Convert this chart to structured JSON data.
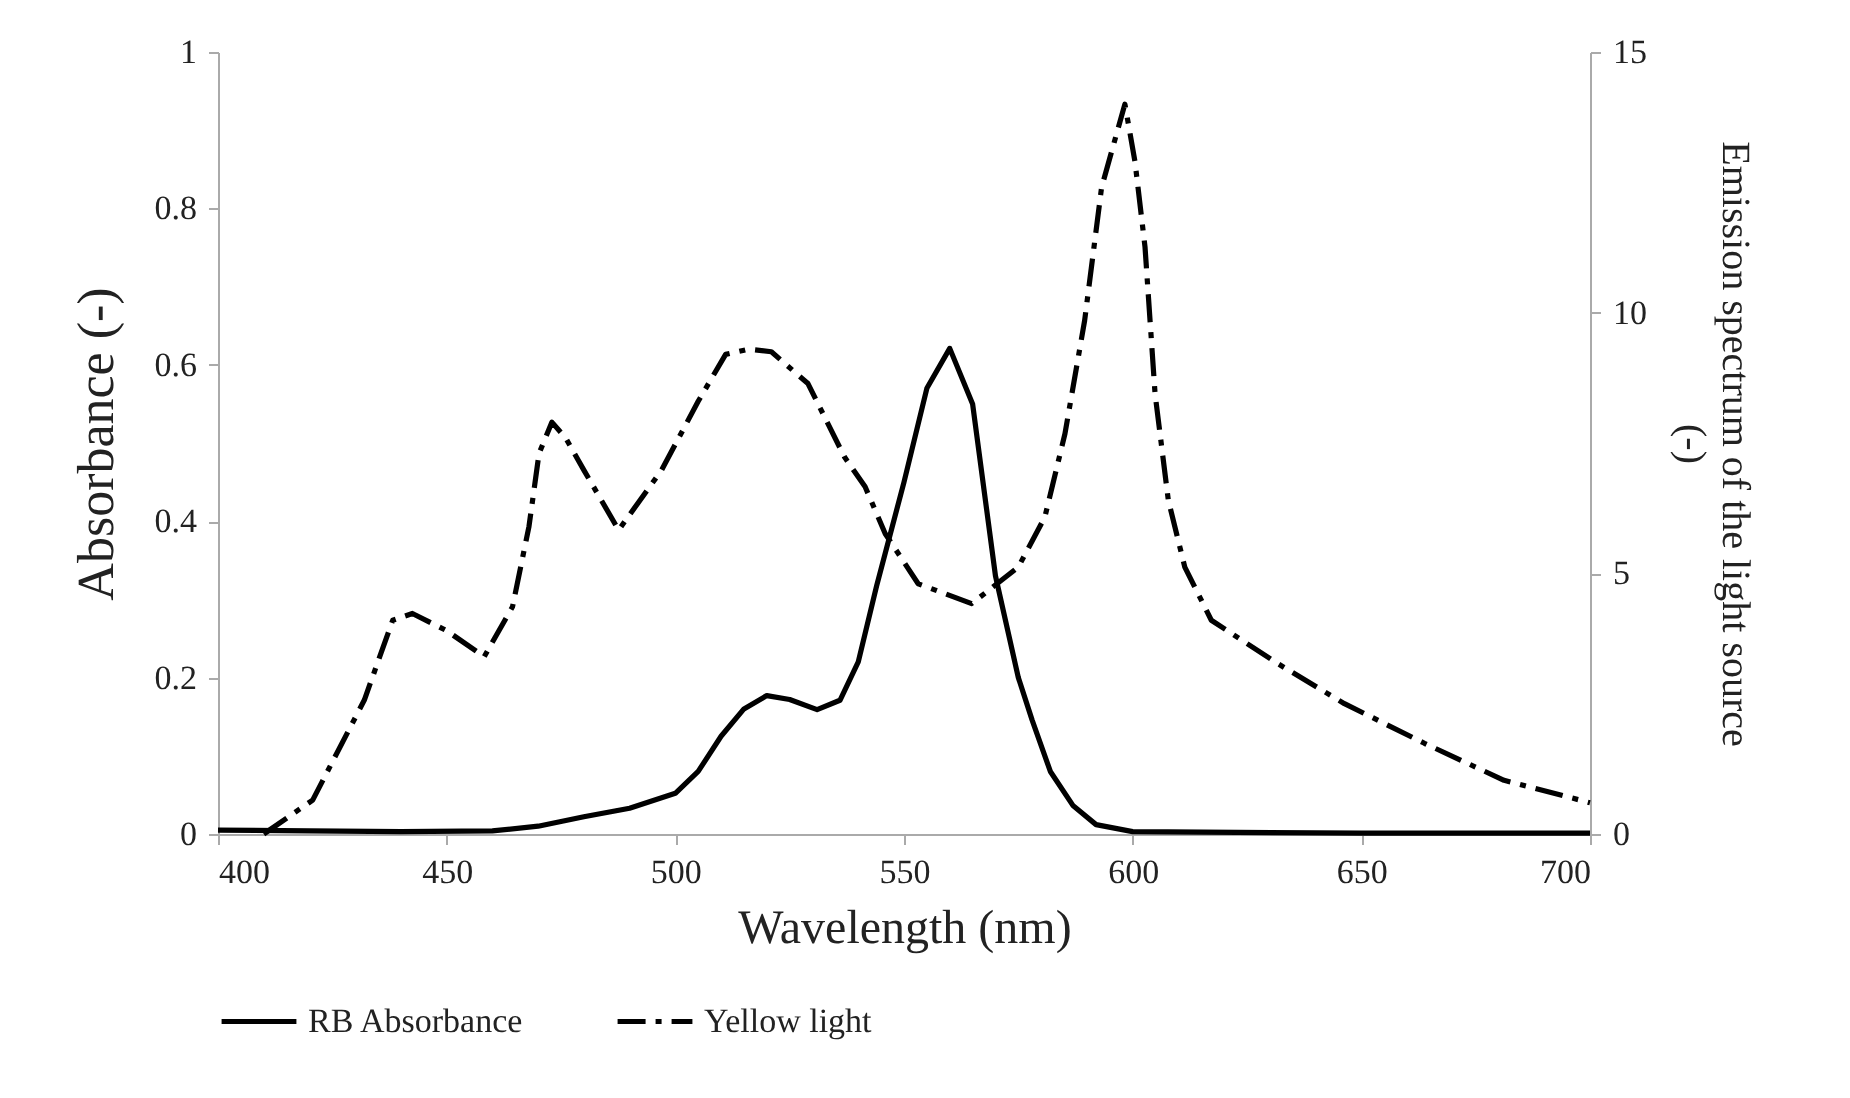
{
  "chart_data": {
    "type": "line",
    "xlabel": "Wavelength (nm)",
    "ylabel": "Absorbance  (-)",
    "y2label": "Emission spectrum of the light source\n(-)",
    "xlim": [
      400,
      700
    ],
    "xticks": [
      400,
      450,
      500,
      550,
      600,
      650,
      700
    ],
    "ylim": [
      0,
      1
    ],
    "yticks": [
      0,
      0.2,
      0.4,
      0.6,
      0.8,
      1
    ],
    "y2lim": [
      0,
      15
    ],
    "y2ticks": [
      0,
      5,
      10,
      15
    ],
    "grid": false,
    "legend": "bottom",
    "marker": "none",
    "series": [
      {
        "name": "RB Absorbance",
        "color": "#000000",
        "line_style": "solid",
        "x": [
          400,
          420,
          440,
          460,
          470,
          480,
          490,
          500,
          505,
          510,
          515,
          520,
          525,
          531,
          536,
          540,
          544,
          550,
          555,
          560,
          565,
          570,
          575,
          578,
          582,
          587,
          592,
          600,
          650,
          700
        ],
        "values": [
          0.005,
          0.004,
          0.003,
          0.004,
          0.01,
          0.022,
          0.033,
          0.052,
          0.08,
          0.125,
          0.16,
          0.177,
          0.172,
          0.159,
          0.171,
          0.22,
          0.317,
          0.45,
          0.57,
          0.621,
          0.55,
          0.33,
          0.2,
          0.146,
          0.08,
          0.036,
          0.012,
          0.003,
          0.001,
          0.001
        ]
      },
      {
        "name": "Yellow light",
        "color": "#000000",
        "line_style": "dashdot",
        "axis": "y2",
        "x": [
          410,
          420.7,
          432,
          438.2,
          442.5,
          450,
          458.2,
          464.4,
          468,
          470.2,
          473,
          476,
          480,
          487.6,
          497,
          505,
          511,
          516,
          521,
          529,
          537,
          541.5,
          545.9,
          553.1,
          564.8,
          575,
          580.8,
          585.2,
          589.5,
          593.2,
          598.3,
          600.5,
          602.7,
          604.9,
          607.8,
          611.4,
          617.2,
          631.7,
          646.3,
          663.8,
          681.2,
          700
        ],
        "values": [
          0,
          0.65,
          2.57,
          4.1,
          4.23,
          3.9,
          3.4,
          4.36,
          5.9,
          7.3,
          7.9,
          7.6,
          6.98,
          5.83,
          6.98,
          8.3,
          9.2,
          9.3,
          9.25,
          8.64,
          7.23,
          6.66,
          5.76,
          4.8,
          4.42,
          5.12,
          6.08,
          7.68,
          9.85,
          12.4,
          14.0,
          12.9,
          11.26,
          8.44,
          6.4,
          5.12,
          4.1,
          3.27,
          2.5,
          1.74,
          1.03,
          0.6
        ]
      }
    ]
  }
}
